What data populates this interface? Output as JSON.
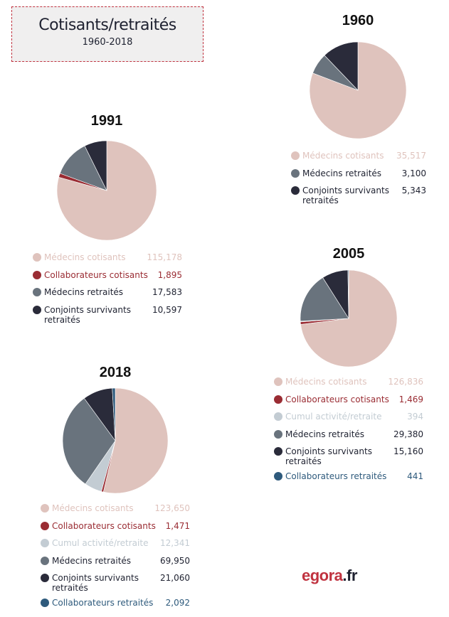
{
  "header": {
    "title": "Cotisants/retraités",
    "subtitle": "1960-2018"
  },
  "brand": {
    "name": "egora",
    "tld": ".fr"
  },
  "colors": {
    "medecins_cotisants": "#dfc3bd",
    "collaborateurs_cotisants": "#9a2c33",
    "cumul": "#c3ccd3",
    "medecins_retraites": "#69737d",
    "conjoints": "#2a2b3a",
    "collaborateurs_retraites": "#2e5a7c"
  },
  "chart_data": [
    {
      "type": "pie",
      "title": "1960",
      "categories": [
        "Médecins cotisants",
        "Médecins retraités",
        "Conjoints survivants retraités"
      ],
      "values": [
        35517,
        3100,
        5343
      ],
      "labels": [
        "35,517",
        "3,100",
        "5,343"
      ],
      "color_keys": [
        "medecins_cotisants",
        "medecins_retraites",
        "conjoints"
      ]
    },
    {
      "type": "pie",
      "title": "1991",
      "categories": [
        "Médecins cotisants",
        "Collaborateurs cotisants",
        "Médecins retraités",
        "Conjoints survivants retraités"
      ],
      "values": [
        115178,
        1895,
        17583,
        10597
      ],
      "labels": [
        "115,178",
        "1,895",
        "17,583",
        "10,597"
      ],
      "color_keys": [
        "medecins_cotisants",
        "collaborateurs_cotisants",
        "medecins_retraites",
        "conjoints"
      ]
    },
    {
      "type": "pie",
      "title": "2005",
      "categories": [
        "Médecins cotisants",
        "Collaborateurs cotisants",
        "Cumul activité/retraite",
        "Médecins retraités",
        "Conjoints survivants retraités",
        "Collaborateurs retraités"
      ],
      "values": [
        126836,
        1469,
        394,
        29380,
        15160,
        441
      ],
      "labels": [
        "126,836",
        "1,469",
        "394",
        "29,380",
        "15,160",
        "441"
      ],
      "color_keys": [
        "medecins_cotisants",
        "collaborateurs_cotisants",
        "cumul",
        "medecins_retraites",
        "conjoints",
        "collaborateurs_retraites"
      ]
    },
    {
      "type": "pie",
      "title": "2018",
      "categories": [
        "Médecins cotisants",
        "Collaborateurs cotisants",
        "Cumul activité/retraite",
        "Médecins retraités",
        "Conjoints survivants retraités",
        "Collaborateurs retraités"
      ],
      "values": [
        123650,
        1471,
        12341,
        69950,
        21060,
        2092
      ],
      "labels": [
        "123,650",
        "1,471",
        "12,341",
        "69,950",
        "21,060",
        "2,092"
      ],
      "color_keys": [
        "medecins_cotisants",
        "collaborateurs_cotisants",
        "cumul",
        "medecins_retraites",
        "conjoints",
        "collaborateurs_retraites"
      ]
    }
  ]
}
